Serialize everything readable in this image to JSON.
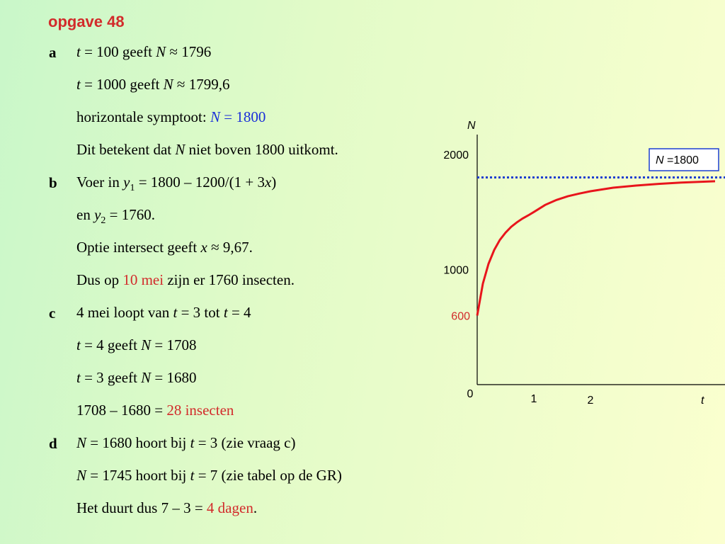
{
  "title": "opgave 48",
  "labels": {
    "a": "a",
    "b": "b",
    "c": "c",
    "d": "d"
  },
  "a": {
    "l1": {
      "t": "t",
      "eq": " = 100 geeft ",
      "N": "N",
      "val": " ≈ 1796"
    },
    "l2": {
      "t": "t",
      "eq": " = 1000 geeft ",
      "N": "N",
      "val": " ≈ 1799,6"
    },
    "l3": {
      "text": "horizontale symptoot: ",
      "N": "N",
      "val": " = 1800"
    },
    "l4": {
      "pre": "Dit betekent dat ",
      "N": "N",
      "post": " niet boven 1800 uitkomt."
    }
  },
  "b": {
    "l1": {
      "pre": "Voer in ",
      "y": "y",
      "sub": "1",
      "expr": "  = 1800 – 1200/(1 + 3",
      "x": "x",
      "close": ")"
    },
    "l2": {
      "pre": "en ",
      "y": "y",
      "sub": "2",
      "post": " = 1760."
    },
    "l3": {
      "pre": "Optie intersect geeft ",
      "x": "x",
      "post": " ≈ 9,67."
    },
    "l4": {
      "pre": "Dus op ",
      "highlight": "10 mei",
      "post": " zijn er 1760  insecten."
    }
  },
  "c": {
    "l1": {
      "pre": "4 mei loopt van ",
      "t1": "t",
      "mid": " = 3 tot ",
      "t2": "t",
      "post": " = 4"
    },
    "l2": {
      "t": "t",
      "mid": " = 4 geeft ",
      "N": "N",
      "post": " = 1708"
    },
    "l3": {
      "t": "t",
      "mid": " = 3 geeft ",
      "N": "N",
      "post": " = 1680"
    },
    "l4": {
      "pre": "1708 – 1680 = ",
      "highlight": "28 insecten"
    }
  },
  "d": {
    "l1": {
      "N": "N",
      "mid": " = 1680 hoort bij ",
      "t": "t",
      "post": " = 3 (zie vraag c)"
    },
    "l2": {
      "N": "N",
      "mid": " = 1745 hoort bij ",
      "t": "t",
      "post": " = 7 (zie tabel op de GR)"
    },
    "l3": {
      "pre": "Het duurt dus 7 – 3 = ",
      "highlight": "4 dagen",
      "post": "."
    }
  },
  "chart_data": {
    "type": "line",
    "xlabel": "t",
    "ylabel": "N",
    "x_ticks": [
      "0",
      "1",
      "2"
    ],
    "y_ticks": [
      "1000",
      "2000"
    ],
    "start_label": "600",
    "asymptote": {
      "y": 1800,
      "label_var": "N",
      "label_val": " =1800"
    },
    "series": [
      {
        "x": [
          0,
          0.1,
          0.2,
          0.3,
          0.4,
          0.5,
          0.6,
          0.7,
          0.8,
          0.9,
          1.0,
          1.2,
          1.4,
          1.6,
          1.8,
          2.0,
          2.4,
          2.8,
          3.2,
          3.6,
          4.0,
          4.2
        ],
        "y": [
          600,
          877,
          1050,
          1170,
          1257,
          1320,
          1371,
          1410,
          1443,
          1470,
          1500,
          1561,
          1604,
          1636,
          1660,
          1680,
          1711,
          1729,
          1744,
          1755,
          1763,
          1767
        ]
      }
    ],
    "colors": {
      "curve": "#e8151c",
      "asymptote": "#1c3fd0",
      "axis": "#000000",
      "start_label": "#d22b2b"
    }
  }
}
